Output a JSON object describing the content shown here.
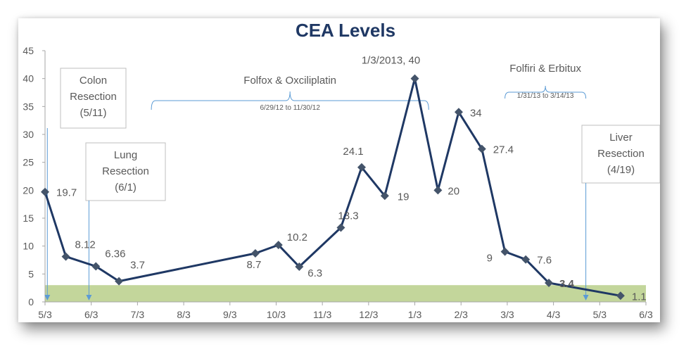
{
  "chart_data": {
    "type": "line",
    "title": "CEA Levels",
    "xlabel": "",
    "ylabel": "",
    "ylim": [
      0,
      45
    ],
    "y_ticks": [
      "0",
      "5",
      "10",
      "15",
      "20",
      "25",
      "30",
      "35",
      "40",
      "45"
    ],
    "x_month_range": [
      0,
      13
    ],
    "x_tick_labels": [
      "5/3",
      "6/3",
      "7/3",
      "8/3",
      "9/3",
      "10/3",
      "11/3",
      "12/3",
      "1/3",
      "2/3",
      "3/3",
      "4/3",
      "5/3",
      "6/3"
    ],
    "normal_band": {
      "from": 0,
      "to": 3,
      "color": "#c3d69b"
    },
    "line_color": "#1f3864",
    "marker_color": "#44546a",
    "series": [
      {
        "name": "CEA",
        "points": [
          {
            "x": 0.0,
            "y": 19.7,
            "label": "19.7"
          },
          {
            "x": 0.45,
            "y": 8.12,
            "label": "8.12"
          },
          {
            "x": 1.1,
            "y": 6.36,
            "label": "6.36"
          },
          {
            "x": 1.6,
            "y": 3.7,
            "label": "3.7"
          },
          {
            "x": 4.55,
            "y": 8.7,
            "label": "8.7"
          },
          {
            "x": 5.05,
            "y": 10.2,
            "label": "10.2"
          },
          {
            "x": 5.5,
            "y": 6.3,
            "label": "6.3"
          },
          {
            "x": 6.4,
            "y": 13.3,
            "label": "13.3"
          },
          {
            "x": 6.85,
            "y": 24.1,
            "label": "24.1"
          },
          {
            "x": 7.35,
            "y": 19,
            "label": "19"
          },
          {
            "x": 8.0,
            "y": 40,
            "label": "1/3/2013,  40"
          },
          {
            "x": 8.5,
            "y": 20,
            "label": "20"
          },
          {
            "x": 8.95,
            "y": 34,
            "label": "34"
          },
          {
            "x": 9.45,
            "y": 27.4,
            "label": "27.4"
          },
          {
            "x": 9.95,
            "y": 9,
            "label": "9"
          },
          {
            "x": 10.4,
            "y": 7.6,
            "label": "7.6"
          },
          {
            "x": 10.9,
            "y": 3.4,
            "label": "3.4"
          },
          {
            "x": 12.45,
            "y": 1.1,
            "label": "1.1"
          }
        ]
      }
    ],
    "annotations": {
      "colon": {
        "lines": [
          "Colon",
          "Resection",
          "(5/11)"
        ],
        "arrow_x": 0.05
      },
      "lung": {
        "lines": [
          "Lung",
          "Resection",
          "(6/1)"
        ],
        "arrow_x": 0.95
      },
      "liver": {
        "lines": [
          "Liver",
          "Resection",
          "(4/19)"
        ],
        "arrow_x": 11.7
      },
      "folfox": {
        "label": "Folfox & Oxciliplatin",
        "dates": "6/29/12 to 11/30/12",
        "x_from": 2.3,
        "x_to": 8.3
      },
      "folfiri": {
        "label": "Folfiri & Erbitux",
        "dates": "1/31/13 to 3/14/13",
        "x_from": 9.95,
        "x_to": 11.7
      }
    }
  }
}
